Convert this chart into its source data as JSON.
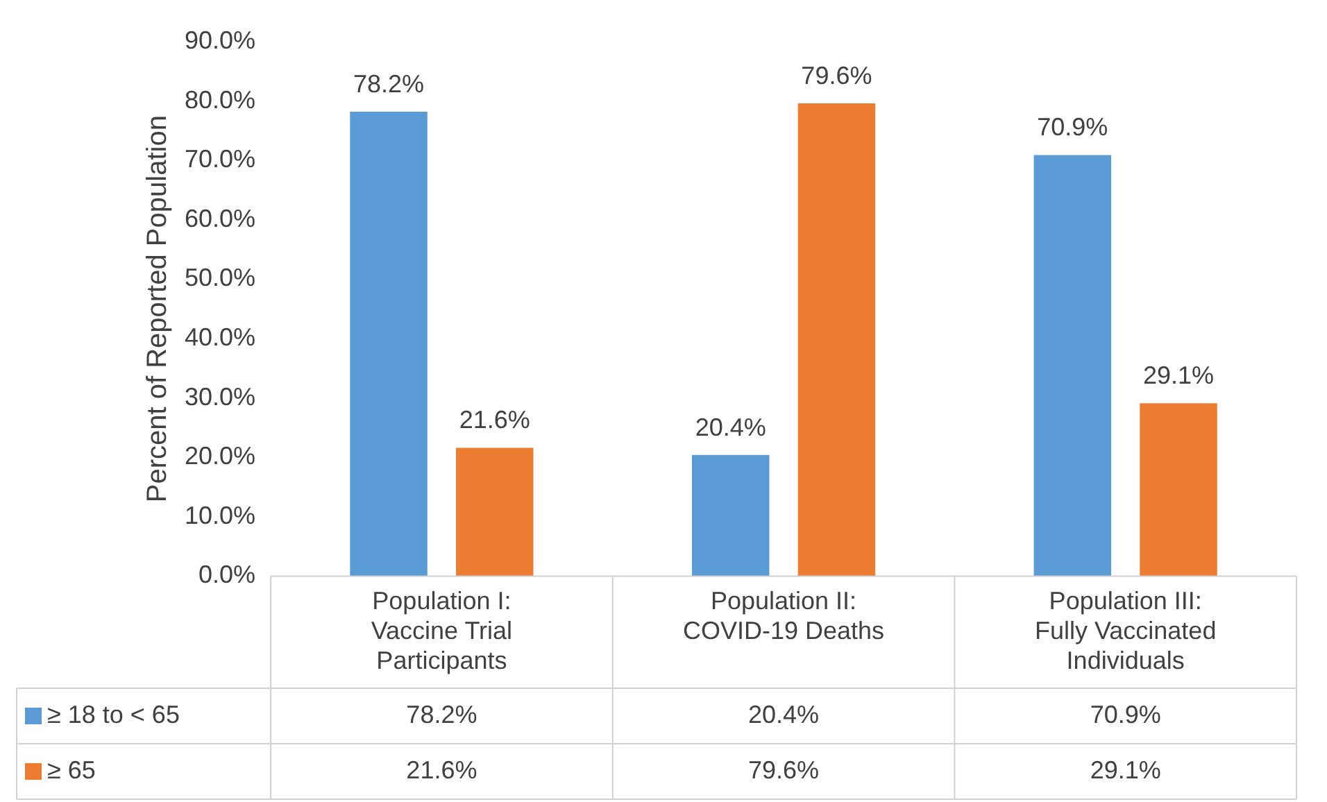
{
  "chart_data": {
    "type": "bar",
    "ylabel": "Percent of Reported Population",
    "categories": [
      "Population I: Vaccine Trial Participants",
      "Population II: COVID-19 Deaths",
      "Population III: Fully Vaccinated Individuals"
    ],
    "series": [
      {
        "name": "≥ 18 to < 65",
        "color": "#5b9bd5",
        "values": [
          78.2,
          20.4,
          70.9
        ],
        "value_labels": [
          "78.2%",
          "20.4%",
          "70.9%"
        ]
      },
      {
        "name": "≥ 65",
        "color": "#ed7d31",
        "values": [
          21.6,
          79.6,
          29.1
        ],
        "value_labels": [
          "21.6%",
          "79.6%",
          "29.1%"
        ]
      }
    ],
    "ylim": [
      0,
      90
    ],
    "yticks": [
      {
        "value": 0,
        "label": "0.0%"
      },
      {
        "value": 10,
        "label": "10.0%"
      },
      {
        "value": 20,
        "label": "20.0%"
      },
      {
        "value": 30,
        "label": "30.0%"
      },
      {
        "value": 40,
        "label": "40.0%"
      },
      {
        "value": 50,
        "label": "50.0%"
      },
      {
        "value": 60,
        "label": "60.0%"
      },
      {
        "value": 70,
        "label": "70.0%"
      },
      {
        "value": 80,
        "label": "80.0%"
      },
      {
        "value": 90,
        "label": "90.0%"
      }
    ],
    "legend": "bottom"
  }
}
